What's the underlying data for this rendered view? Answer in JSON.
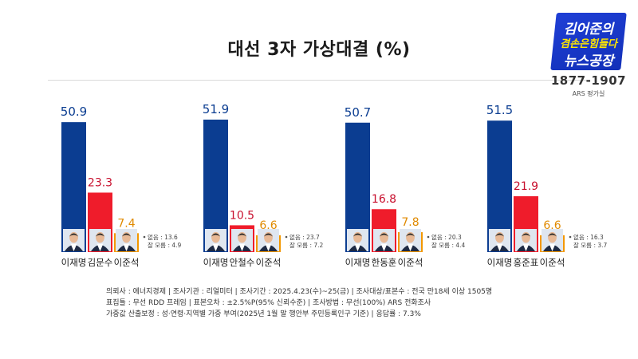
{
  "header": {
    "title": "대선  3자 가상대결 (%)"
  },
  "logo": {
    "line1": "김어준의",
    "line2": "겸손은힘들다",
    "line3": "뉴스공장",
    "phone": "1877-1907",
    "sub": "ARS 평가실"
  },
  "colors": {
    "blue": "#0b3d91",
    "red": "#ef1c2b",
    "orange": "#f39800",
    "blueText": "#0b3d91",
    "redText": "#c8102e",
    "orangeText": "#e08a00"
  },
  "chart_data": [
    {
      "type": "bar",
      "categories": [
        "이재명",
        "김문수",
        "이준석"
      ],
      "values": [
        50.9,
        23.3,
        7.4
      ],
      "notes": [
        "없음 : 13.6",
        "잘 모름 : 4.9"
      ],
      "ylim": [
        0,
        55
      ]
    },
    {
      "type": "bar",
      "categories": [
        "이재명",
        "안철수",
        "이준석"
      ],
      "values": [
        51.9,
        10.5,
        6.6
      ],
      "notes": [
        "없음 : 23.7",
        "잘 모름 : 7.2"
      ],
      "ylim": [
        0,
        55
      ]
    },
    {
      "type": "bar",
      "categories": [
        "이재명",
        "한동훈",
        "이준석"
      ],
      "values": [
        50.7,
        16.8,
        7.8
      ],
      "notes": [
        "없음 : 20.3",
        "잘 모름 : 4.4"
      ],
      "ylim": [
        0,
        55
      ]
    },
    {
      "type": "bar",
      "categories": [
        "이재명",
        "홍준표",
        "이준석"
      ],
      "values": [
        51.5,
        21.9,
        6.6
      ],
      "notes": [
        "없음 : 16.3",
        "잘 모름 : 3.7"
      ],
      "ylim": [
        0,
        55
      ]
    }
  ],
  "footnote": {
    "line1": "의뢰사 : 에너지경제 | 조사기관 : 리얼미터  |  조사기간 : 2025.4.23(수)~25(금) | 조사대상/표본수 : 전국 만18세 이상 1505명",
    "line2": "표집틀 : 무선 RDD 프레임 | 표본오차 : ±2.5%P(95% 신뢰수준) | 조사방법 : 무선(100%) ARS 전화조사",
    "line3": "가중값 산출보정 : 성·연령·지역별 가중 부여(2025년 1월 말 행안부 주민등록인구 기준) | 응답률 : 7.3%"
  }
}
